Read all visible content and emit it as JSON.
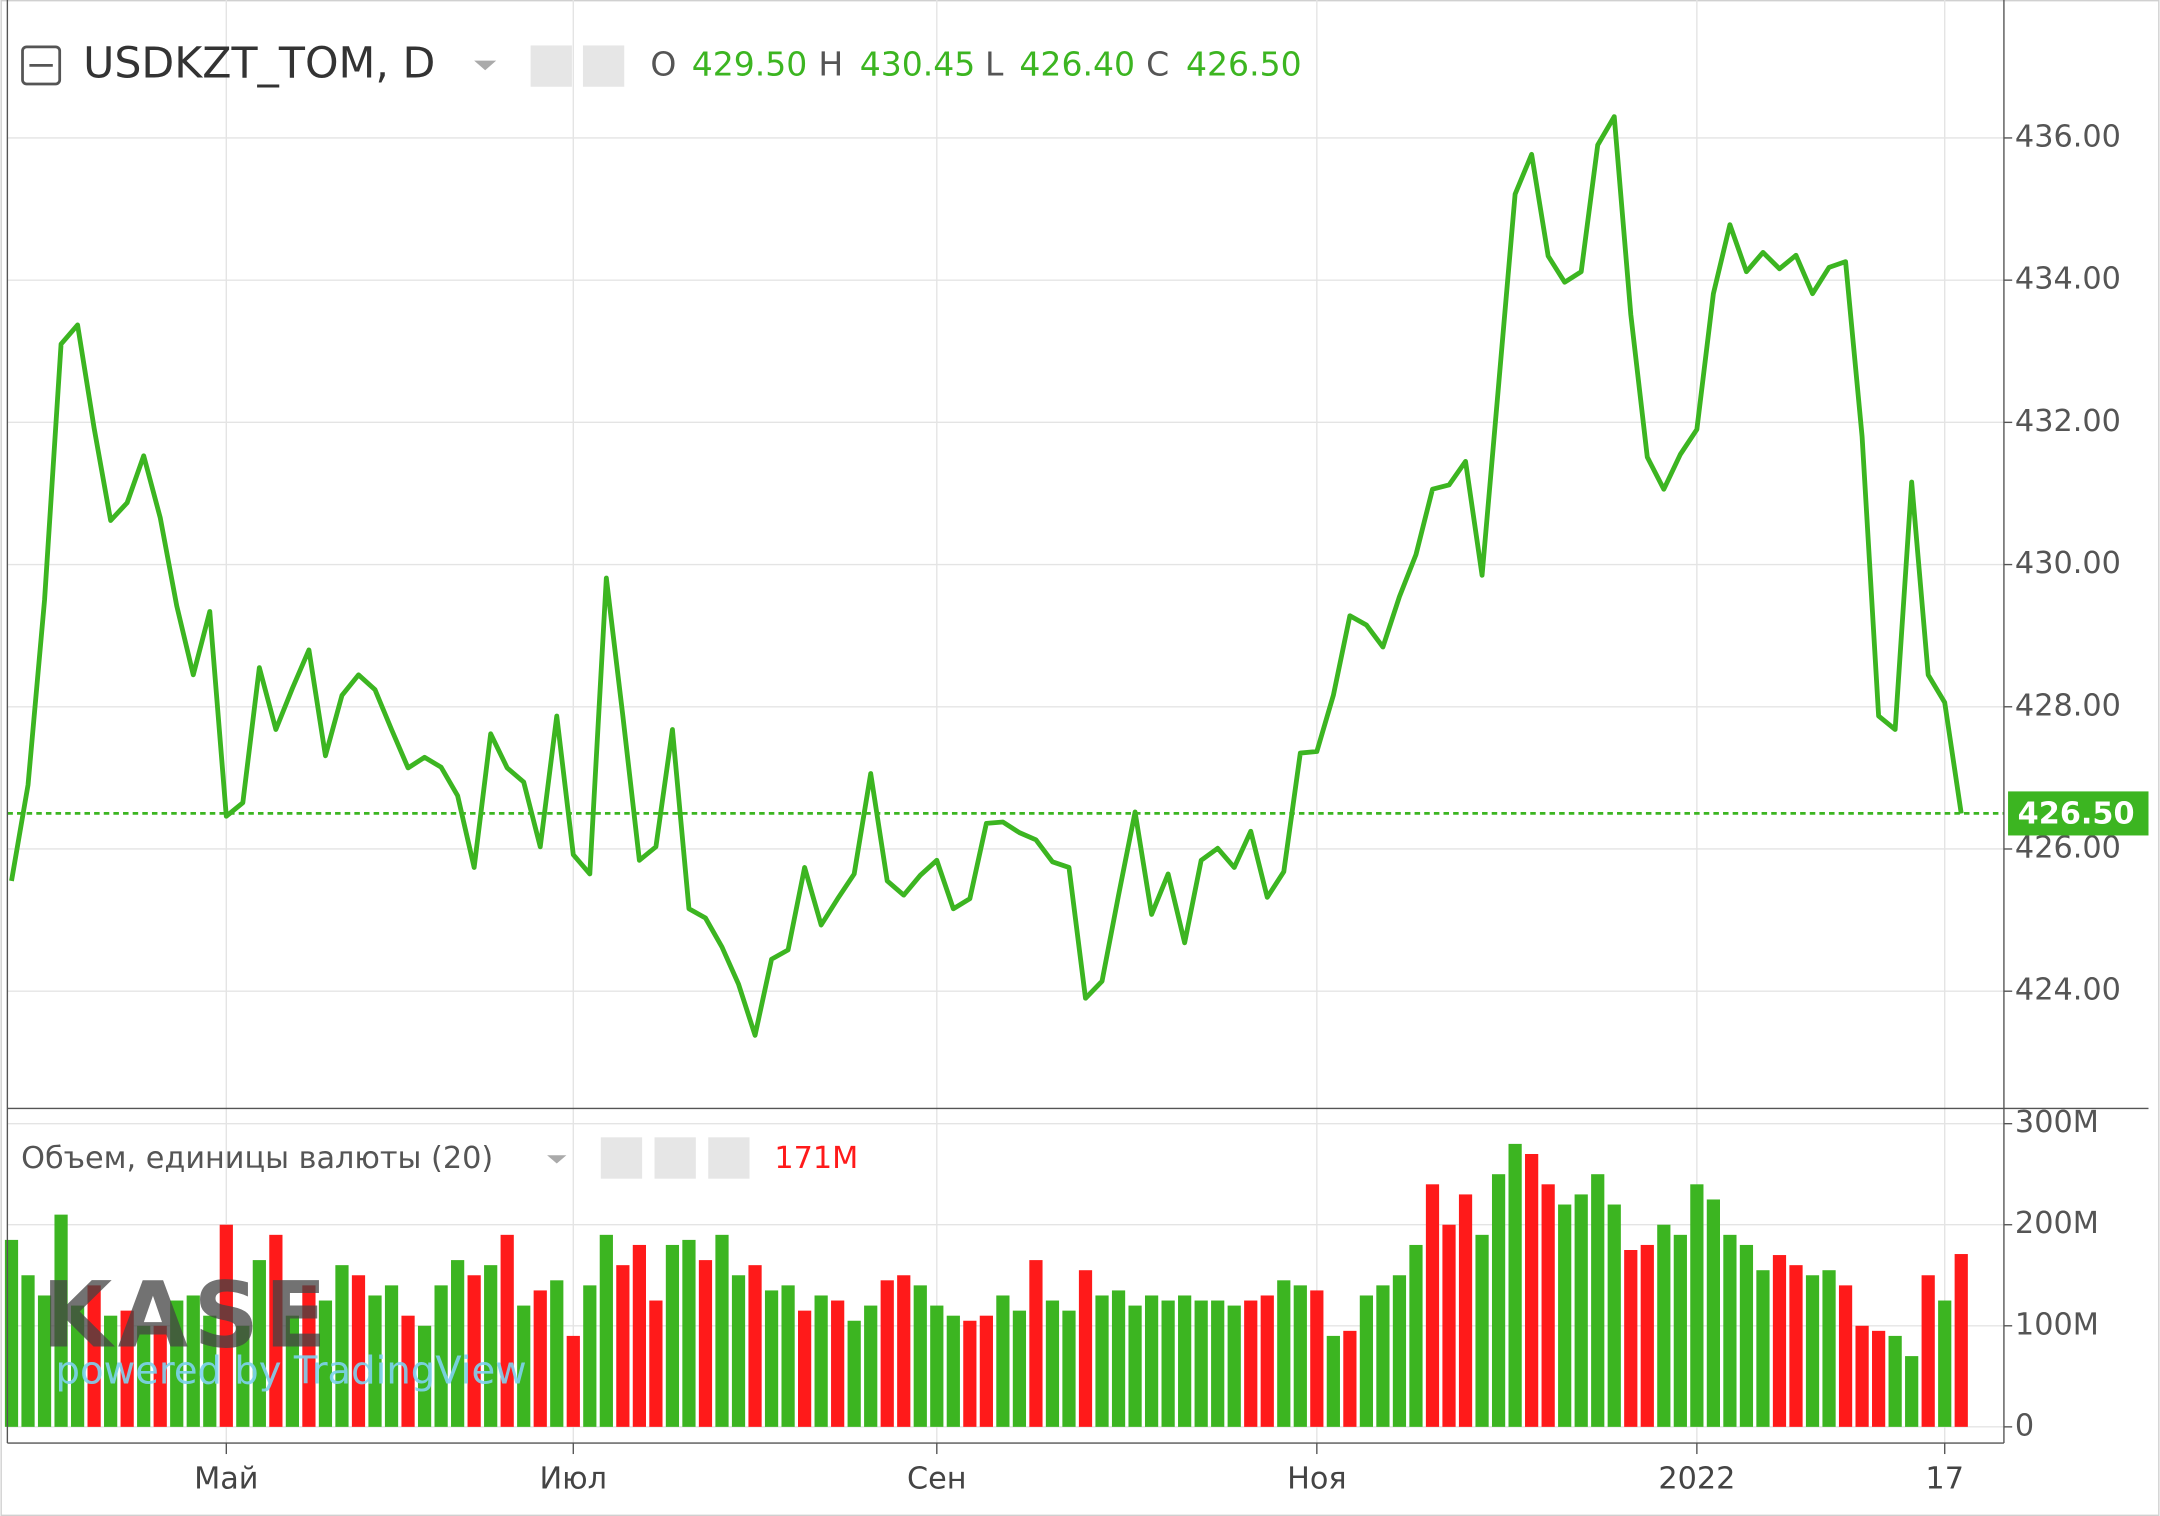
{
  "chart_data": [
    {
      "type": "line",
      "title": "USDKZT_TOM, D",
      "ohlc": [
        {
          "name": "O",
          "value": 429.5,
          "label": "429.50"
        },
        {
          "name": "H",
          "value": 430.45,
          "label": "430.45"
        },
        {
          "name": "L",
          "value": 426.4,
          "label": "426.40"
        },
        {
          "name": "C",
          "value": 426.5,
          "label": "426.50"
        }
      ],
      "categories": [
        null,
        null,
        null,
        null,
        null,
        null,
        null,
        null,
        null,
        null,
        null,
        null,
        null,
        "Май",
        null,
        null,
        null,
        null,
        null,
        null,
        null,
        null,
        null,
        null,
        null,
        null,
        null,
        null,
        null,
        null,
        null,
        null,
        null,
        null,
        "Июл",
        null,
        null,
        null,
        null,
        null,
        null,
        null,
        null,
        null,
        null,
        null,
        null,
        null,
        null,
        null,
        null,
        null,
        null,
        null,
        null,
        null,
        "Сен",
        null,
        null,
        null,
        null,
        null,
        null,
        null,
        null,
        null,
        null,
        null,
        null,
        null,
        null,
        null,
        null,
        null,
        null,
        null,
        null,
        null,
        null,
        "Ноя",
        null,
        null,
        null,
        null,
        null,
        null,
        null,
        null,
        null,
        null,
        null,
        null,
        null,
        null,
        null,
        null,
        null,
        null,
        null,
        null,
        null,
        null,
        "2022",
        null,
        null,
        null,
        null,
        null,
        null,
        null,
        null,
        null,
        null,
        null,
        null,
        null,
        null,
        "17",
        null
      ],
      "series": [
        {
          "color": "#3cb521",
          "values": [
            425.55,
            426.9,
            429.5,
            433.1,
            433.37,
            431.92,
            430.62,
            430.87,
            431.53,
            430.66,
            429.42,
            428.45,
            429.34,
            426.46,
            426.65,
            428.55,
            427.68,
            428.26,
            428.8,
            427.31,
            428.16,
            428.45,
            428.24,
            427.68,
            427.14,
            427.29,
            427.15,
            426.75,
            425.74,
            427.62,
            427.14,
            426.94,
            426.03,
            427.87,
            425.92,
            425.65,
            429.81,
            427.87,
            425.84,
            426.03,
            427.68,
            425.16,
            425.03,
            424.62,
            424.1,
            423.38,
            424.45,
            424.58,
            425.74,
            424.93,
            425.3,
            425.65,
            427.06,
            425.55,
            425.35,
            425.63,
            425.84,
            425.16,
            425.3,
            426.36,
            426.38,
            426.23,
            426.13,
            425.82,
            425.74,
            423.9,
            424.14,
            425.35,
            426.52,
            425.08,
            425.65,
            424.68,
            425.84,
            426.01,
            425.74,
            426.25,
            425.32,
            425.68,
            427.35,
            427.37,
            428.16,
            429.28,
            429.15,
            428.84,
            429.55,
            430.14,
            431.06,
            431.12,
            431.45,
            429.85,
            432.52,
            435.21,
            435.77,
            434.34,
            433.97,
            434.12,
            435.9,
            436.3,
            433.52,
            431.51,
            431.06,
            431.55,
            431.9,
            433.81,
            434.78,
            434.12,
            434.39,
            434.16,
            434.35,
            433.81,
            434.18,
            434.26,
            431.8,
            427.87,
            427.68,
            431.16,
            428.45,
            428.06,
            426.5
          ]
        }
      ],
      "ylim": [
        422.39,
        437.94
      ],
      "yticks": [
        {
          "value": 424,
          "label": "424.00"
        },
        {
          "value": 426,
          "label": "426.00"
        },
        {
          "value": 428,
          "label": "428.00"
        },
        {
          "value": 430,
          "label": "430.00"
        },
        {
          "value": 432,
          "label": "432.00"
        },
        {
          "value": 434,
          "label": "434.00"
        },
        {
          "value": 436,
          "label": "436.00"
        }
      ],
      "grid": true
    },
    {
      "type": "bar",
      "title": "Объем, единицы валюты (20)",
      "last_value": {
        "value": 171000000,
        "label": "171M"
      },
      "values": [
        185000000,
        150000000,
        130000000,
        210000000,
        120000000,
        140000000,
        110000000,
        115000000,
        100000000,
        100000000,
        125000000,
        130000000,
        110000000,
        200000000,
        100000000,
        165000000,
        190000000,
        110000000,
        140000000,
        125000000,
        160000000,
        150000000,
        130000000,
        140000000,
        110000000,
        100000000,
        140000000,
        165000000,
        150000000,
        160000000,
        190000000,
        120000000,
        135000000,
        145000000,
        90000000,
        140000000,
        190000000,
        160000000,
        180000000,
        125000000,
        180000000,
        185000000,
        165000000,
        190000000,
        150000000,
        160000000,
        135000000,
        140000000,
        115000000,
        130000000,
        125000000,
        105000000,
        120000000,
        145000000,
        150000000,
        140000000,
        120000000,
        110000000,
        105000000,
        110000000,
        130000000,
        115000000,
        165000000,
        125000000,
        115000000,
        155000000,
        130000000,
        135000000,
        120000000,
        130000000,
        125000000,
        130000000,
        125000000,
        125000000,
        120000000,
        125000000,
        130000000,
        145000000,
        140000000,
        135000000,
        90000000,
        95000000,
        130000000,
        140000000,
        150000000,
        180000000,
        240000000,
        200000000,
        230000000,
        190000000,
        250000000,
        280000000,
        270000000,
        240000000,
        220000000,
        230000000,
        250000000,
        220000000,
        175000000,
        180000000,
        200000000,
        190000000,
        240000000,
        225000000,
        190000000,
        180000000,
        155000000,
        170000000,
        160000000,
        150000000,
        155000000,
        140000000,
        100000000,
        95000000,
        90000000,
        70000000,
        150000000,
        125000000,
        171000000
      ],
      "colors": [
        "#3cb521",
        "#3cb521",
        "#3cb521",
        "#3cb521",
        "#3cb521",
        "#ff1a1a",
        "#3cb521",
        "#ff1a1a",
        "#3cb521",
        "#ff1a1a",
        "#3cb521",
        "#3cb521",
        "#3cb521",
        "#ff1a1a",
        "#3cb521",
        "#3cb521",
        "#ff1a1a",
        "#3cb521",
        "#ff1a1a",
        "#3cb521",
        "#3cb521",
        "#ff1a1a",
        "#3cb521",
        "#3cb521",
        "#ff1a1a",
        "#3cb521",
        "#3cb521",
        "#3cb521",
        "#ff1a1a",
        "#3cb521",
        "#ff1a1a",
        "#3cb521",
        "#ff1a1a",
        "#3cb521",
        "#ff1a1a",
        "#3cb521",
        "#3cb521",
        "#ff1a1a",
        "#ff1a1a",
        "#ff1a1a",
        "#3cb521",
        "#3cb521",
        "#ff1a1a",
        "#3cb521",
        "#3cb521",
        "#ff1a1a",
        "#3cb521",
        "#3cb521",
        "#ff1a1a",
        "#3cb521",
        "#ff1a1a",
        "#3cb521",
        "#3cb521",
        "#ff1a1a",
        "#ff1a1a",
        "#3cb521",
        "#3cb521",
        "#3cb521",
        "#ff1a1a",
        "#ff1a1a",
        "#3cb521",
        "#3cb521",
        "#ff1a1a",
        "#3cb521",
        "#3cb521",
        "#ff1a1a",
        "#3cb521",
        "#3cb521",
        "#3cb521",
        "#3cb521",
        "#3cb521",
        "#3cb521",
        "#3cb521",
        "#3cb521",
        "#3cb521",
        "#ff1a1a",
        "#ff1a1a",
        "#3cb521",
        "#3cb521",
        "#ff1a1a",
        "#3cb521",
        "#ff1a1a",
        "#3cb521",
        "#3cb521",
        "#3cb521",
        "#3cb521",
        "#ff1a1a",
        "#ff1a1a",
        "#ff1a1a",
        "#3cb521",
        "#3cb521",
        "#3cb521",
        "#ff1a1a",
        "#ff1a1a",
        "#3cb521",
        "#3cb521",
        "#3cb521",
        "#3cb521",
        "#ff1a1a",
        "#ff1a1a",
        "#3cb521",
        "#3cb521",
        "#3cb521",
        "#3cb521",
        "#3cb521",
        "#3cb521",
        "#3cb521",
        "#ff1a1a",
        "#ff1a1a",
        "#3cb521",
        "#3cb521",
        "#ff1a1a",
        "#ff1a1a",
        "#ff1a1a",
        "#3cb521",
        "#3cb521",
        "#ff1a1a",
        "#3cb521",
        "#ff1a1a"
      ],
      "ylim": [
        -16000000,
        311000000
      ],
      "yticks": [
        0,
        {
          "value": 100000000,
          "label": "100M"
        },
        {
          "value": 200000000,
          "label": "200M"
        },
        {
          "value": 300000000,
          "label": "300M"
        }
      ],
      "grid": true
    }
  ],
  "watermark": {
    "logo": "KASE",
    "text": "powered by TradingView"
  }
}
